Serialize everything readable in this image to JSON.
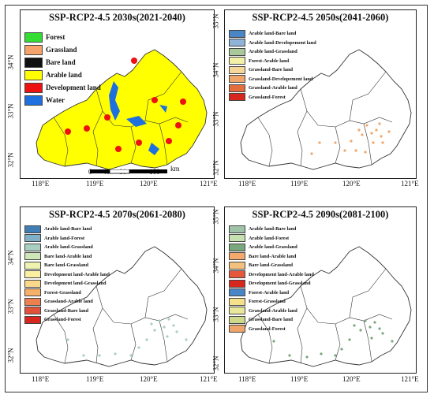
{
  "panels": [
    {
      "title": "SSP-RCP2-4.5 2030s(2021-2040)",
      "legend": [
        {
          "label": "Forest",
          "color": "#33dd33"
        },
        {
          "label": "Grassland",
          "color": "#f4a46a"
        },
        {
          "label": "Bare land",
          "color": "#111111"
        },
        {
          "label": "Arable land",
          "color": "#ffff00"
        },
        {
          "label": "Development land",
          "color": "#ee1111"
        },
        {
          "label": "Water",
          "color": "#1e6fe0"
        }
      ],
      "scale_bar": {
        "ticks": [
          "0",
          "40",
          "80",
          "160"
        ],
        "unit": "km"
      }
    },
    {
      "title": "SSP-RCP2-4.5 2050s(2041-2060)",
      "legend": [
        {
          "label": "Arable land-Bare land",
          "color": "#4a86c6"
        },
        {
          "label": "Arable land-Developement land",
          "color": "#8fb3d9"
        },
        {
          "label": "Arable land-Grassland",
          "color": "#a9c99a"
        },
        {
          "label": "Forest-Arable land",
          "color": "#f3f0a8"
        },
        {
          "label": "Grassland-Bare land",
          "color": "#f6d79a"
        },
        {
          "label": "Grassland-Developement land",
          "color": "#f0a66a"
        },
        {
          "label": "Grassland-Arable land",
          "color": "#e36d3d"
        },
        {
          "label": "Grassland-Forest",
          "color": "#d7261e"
        }
      ]
    },
    {
      "title": "SSP-RCP2-4.5 2070s(2061-2080)",
      "legend": [
        {
          "label": "Arable land-Bare land",
          "color": "#3f7fb5"
        },
        {
          "label": "Arable land-Forest",
          "color": "#7fb0c8"
        },
        {
          "label": "Arable land-Grassland",
          "color": "#a8cfc0"
        },
        {
          "label": "Bare land-Arable land",
          "color": "#cfe6b8"
        },
        {
          "label": "Bare land-Grassland",
          "color": "#eef3b0"
        },
        {
          "label": "Development land-Arable land",
          "color": "#fbf0a0"
        },
        {
          "label": "Development land-Grassland",
          "color": "#fbd88a"
        },
        {
          "label": "Forest-Grassland",
          "color": "#f6b06a"
        },
        {
          "label": "Grassland-Arable land",
          "color": "#ee8050"
        },
        {
          "label": "Grassland-Bare land",
          "color": "#e2513a"
        },
        {
          "label": "Grassland-Forest",
          "color": "#d7261e"
        }
      ]
    },
    {
      "title": "SSP-RCP2-4.5 2090s(2081-2100)",
      "legend": [
        {
          "label": "Arable land-Bare land",
          "color": "#9fc3a8"
        },
        {
          "label": "Arable land-Forest",
          "color": "#c7e0b0"
        },
        {
          "label": "Arable land-Grassland",
          "color": "#7aa77e"
        },
        {
          "label": "Bare land-Arable land",
          "color": "#f2a96b"
        },
        {
          "label": "Bare land-Grassland",
          "color": "#f3c07e"
        },
        {
          "label": "Development land-Arable land",
          "color": "#e5563b"
        },
        {
          "label": "Development land-Grassland",
          "color": "#d7261e"
        },
        {
          "label": "Forest-Arable land",
          "color": "#4a86c6"
        },
        {
          "label": "Forest-Grassland",
          "color": "#f6e18a"
        },
        {
          "label": "Grassland-Arable land",
          "color": "#e8e79a"
        },
        {
          "label": "Grassland-Bare land",
          "color": "#cfd98a"
        },
        {
          "label": "Grassland-Forest",
          "color": "#f0a66a"
        }
      ]
    }
  ],
  "axes": {
    "lon_labels": [
      "118°E",
      "119°E",
      "120°E",
      "121°E"
    ],
    "lat_labels": [
      "35°N",
      "34°N",
      "33°N",
      "32°N"
    ]
  }
}
